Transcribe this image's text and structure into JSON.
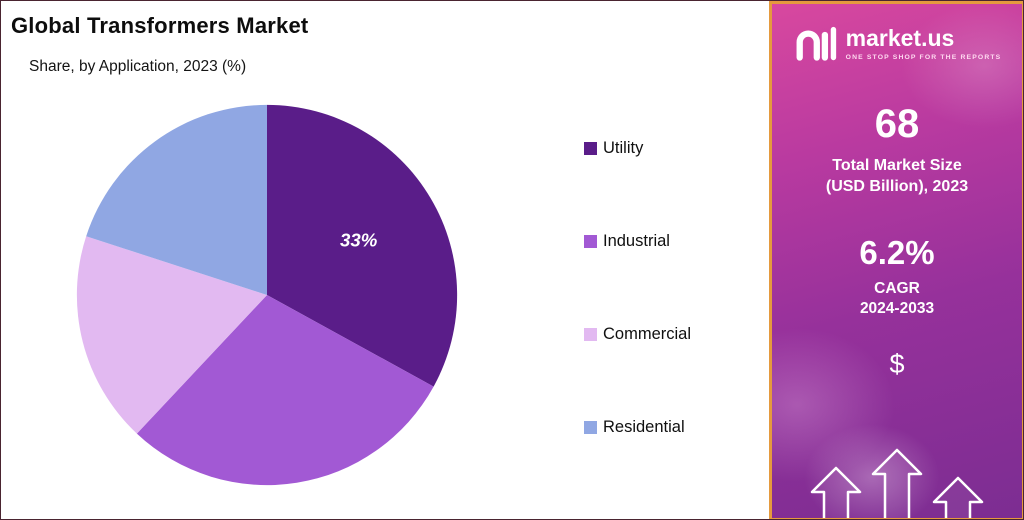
{
  "chart_data": {
    "type": "pie",
    "title": "Global Transformers Market",
    "subtitle": "Share, by Application, 2023 (%)",
    "categories": [
      "Utility",
      "Industrial",
      "Commercial",
      "Residential"
    ],
    "values": [
      33,
      29,
      18,
      20
    ],
    "unit": "%",
    "colors": [
      "#5a1d89",
      "#a259d4",
      "#e2b9f1",
      "#90a7e3"
    ],
    "data_labels": [
      "33%",
      "",
      "",
      ""
    ],
    "legend_position": "right",
    "start_angle": "12 o'clock",
    "direction": "clockwise"
  },
  "sidebar": {
    "brand": {
      "name": "market.us",
      "tagline": "ONE STOP SHOP FOR THE REPORTS"
    },
    "market_size": {
      "value": "68",
      "label_line1": "Total Market Size",
      "label_line2": "(USD Billion), 2023"
    },
    "cagr": {
      "value": "6.2%",
      "label_line1": "CAGR",
      "label_line2": "2024-2033"
    },
    "dollar": "$",
    "accent_border_color": "#e59a3e",
    "gradient_top_color": "#d8489f",
    "gradient_bottom_color": "#7c2d92"
  }
}
